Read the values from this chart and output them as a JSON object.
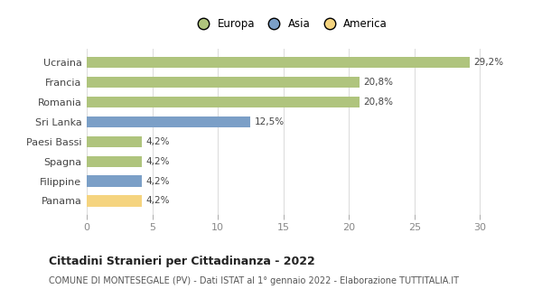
{
  "categories": [
    "Panama",
    "Filippine",
    "Spagna",
    "Paesi Bassi",
    "Sri Lanka",
    "Romania",
    "Francia",
    "Ucraina"
  ],
  "values": [
    4.2,
    4.2,
    4.2,
    4.2,
    12.5,
    20.8,
    20.8,
    29.2
  ],
  "labels": [
    "4,2%",
    "4,2%",
    "4,2%",
    "4,2%",
    "12,5%",
    "20,8%",
    "20,8%",
    "29,2%"
  ],
  "colors": [
    "#f5d47f",
    "#7b9fc7",
    "#afc47d",
    "#afc47d",
    "#7b9fc7",
    "#afc47d",
    "#afc47d",
    "#afc47d"
  ],
  "legend": {
    "Europa": "#afc47d",
    "Asia": "#7b9fc7",
    "America": "#f5d47f"
  },
  "xlim": [
    0,
    31
  ],
  "xticks": [
    0,
    5,
    10,
    15,
    20,
    25,
    30
  ],
  "title": "Cittadini Stranieri per Cittadinanza - 2022",
  "subtitle": "COMUNE DI MONTESEGALE (PV) - Dati ISTAT al 1° gennaio 2022 - Elaborazione TUTTITALIA.IT",
  "background_color": "#ffffff",
  "grid_color": "#dddddd",
  "bar_height": 0.55,
  "label_fontsize": 7.5,
  "tick_fontsize": 8,
  "title_fontsize": 9,
  "subtitle_fontsize": 7
}
